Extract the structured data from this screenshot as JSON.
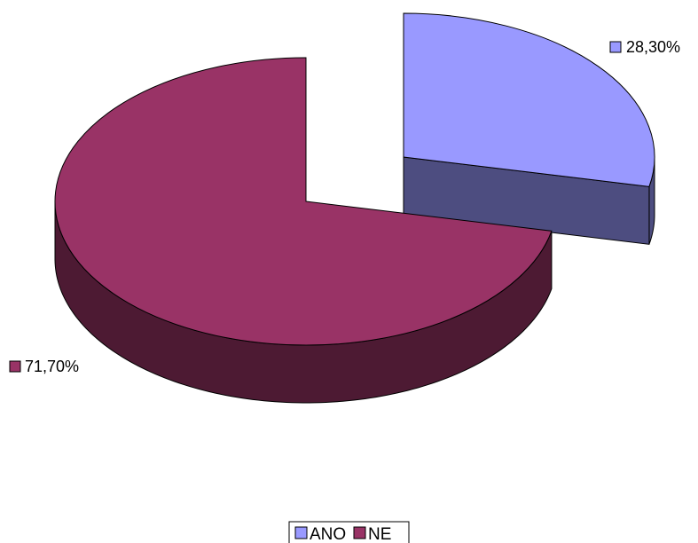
{
  "chart_data": {
    "type": "pie",
    "three_d": true,
    "exploded_slice": "ANO",
    "slices": [
      {
        "name": "ANO",
        "value": 28.3,
        "label": "28,30%",
        "color": "#9999ff",
        "side_color": "#4d4d80"
      },
      {
        "name": "NE",
        "value": 71.7,
        "label": "71,70%",
        "color": "#993366",
        "side_color": "#4d1a33"
      }
    ],
    "legend": {
      "position": "bottom",
      "entries": [
        "ANO",
        "NE"
      ]
    }
  }
}
